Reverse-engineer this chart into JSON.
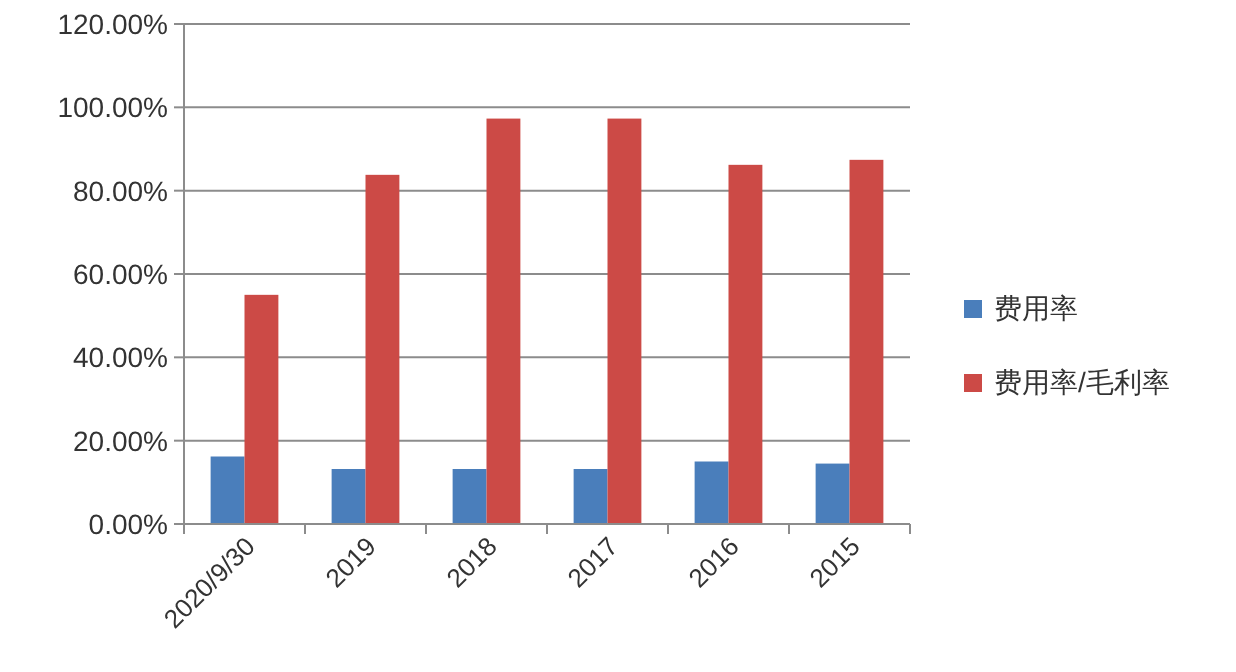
{
  "chart_data": {
    "type": "bar",
    "categories": [
      "2020/9/30",
      "2019",
      "2018",
      "2017",
      "2016",
      "2015"
    ],
    "series": [
      {
        "name": "费用率",
        "color": "#4a7ebb",
        "values": [
          16.2,
          13.2,
          13.2,
          13.2,
          15.0,
          14.5
        ]
      },
      {
        "name": "费用率/毛利率",
        "color": "#cc4a46",
        "values": [
          55.0,
          83.8,
          97.3,
          97.3,
          86.2,
          87.4
        ]
      }
    ],
    "ylim": [
      0,
      120
    ],
    "yticks": [
      {
        "value": 0,
        "label": "0.00%"
      },
      {
        "value": 20,
        "label": "20.00%"
      },
      {
        "value": 40,
        "label": "40.00%"
      },
      {
        "value": 60,
        "label": "60.00%"
      },
      {
        "value": 80,
        "label": "80.00%"
      },
      {
        "value": 100,
        "label": "100.00%"
      },
      {
        "value": 120,
        "label": "120.00%"
      }
    ],
    "grid": "y",
    "legend": "right"
  }
}
